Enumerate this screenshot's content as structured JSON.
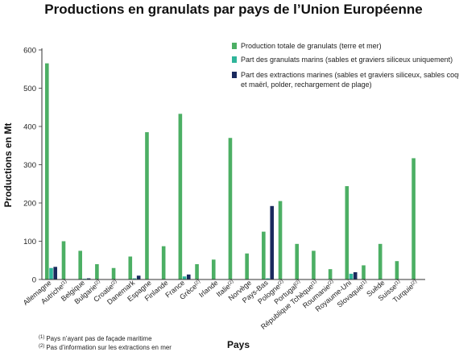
{
  "chart_data": {
    "type": "bar",
    "title": "Productions en granulats par pays de l’Union Européenne",
    "xlabel": "Pays",
    "ylabel": "Productions en Mt",
    "ylim": [
      0,
      600
    ],
    "yticks": [
      0,
      100,
      200,
      300,
      400,
      500,
      600
    ],
    "grid": false,
    "legend_position": "top-right",
    "categories": [
      {
        "name": "Allemagne",
        "note": ""
      },
      {
        "name": "Autriche",
        "note": "(1)"
      },
      {
        "name": "Belgique",
        "note": ""
      },
      {
        "name": "Bulgarie",
        "note": "(2)"
      },
      {
        "name": "Croatie",
        "note": "(2)"
      },
      {
        "name": "Danemark",
        "note": ""
      },
      {
        "name": "Espagne",
        "note": ""
      },
      {
        "name": "Finlande",
        "note": ""
      },
      {
        "name": "France",
        "note": ""
      },
      {
        "name": "Grèce",
        "note": "(2)"
      },
      {
        "name": "Irlande",
        "note": ""
      },
      {
        "name": "Italie",
        "note": "(2)"
      },
      {
        "name": "Norvège",
        "note": ""
      },
      {
        "name": "Pays-Bas",
        "note": ""
      },
      {
        "name": "Pologne",
        "note": "(2)"
      },
      {
        "name": "Portugal",
        "note": "(2)"
      },
      {
        "name": "République Tchèque",
        "note": "(1)"
      },
      {
        "name": "Roumanie",
        "note": "(2)"
      },
      {
        "name": "Royaume-Uni",
        "note": ""
      },
      {
        "name": "Slovaquie",
        "note": "(1)"
      },
      {
        "name": "Suède",
        "note": ""
      },
      {
        "name": "Suisse",
        "note": "(1)"
      },
      {
        "name": "Turquie",
        "note": "(2)"
      }
    ],
    "series": [
      {
        "name": "Production totale de granulats (terre et mer)",
        "color": "#4caf64",
        "values": [
          565,
          100,
          75,
          40,
          30,
          60,
          385,
          87,
          433,
          40,
          52,
          370,
          68,
          125,
          205,
          93,
          75,
          27,
          244,
          37,
          93,
          48,
          317
        ]
      },
      {
        "name": "Part des granulats marins (sables et graviers siliceux uniquement)",
        "color": "#2fb59a",
        "values": [
          30,
          0,
          2,
          0,
          0,
          3,
          1,
          0,
          8,
          0,
          1,
          0,
          0,
          3,
          0,
          0,
          0,
          0,
          15,
          0,
          0,
          0,
          0
        ]
      },
      {
        "name": "Part des extractions marines (sables et graviers siliceux, sables coquilliers et maërl, polder, rechargement de plage)",
        "legend_lines": [
          "Part des extractions marines (sables et graviers siliceux, sables coquilliers",
          "et maërl, polder, rechargement de plage)"
        ],
        "color": "#1a2a5e",
        "values": [
          33,
          0,
          3,
          0,
          0,
          10,
          1,
          0,
          13,
          0,
          1,
          0,
          0,
          192,
          0,
          0,
          0,
          0,
          19,
          0,
          0,
          0,
          0
        ]
      }
    ],
    "footnotes": [
      {
        "mark": "(1)",
        "text": "Pays n’ayant pas de façade maritime"
      },
      {
        "mark": "(2)",
        "text": "Pas d’information sur les extractions en mer"
      }
    ]
  }
}
